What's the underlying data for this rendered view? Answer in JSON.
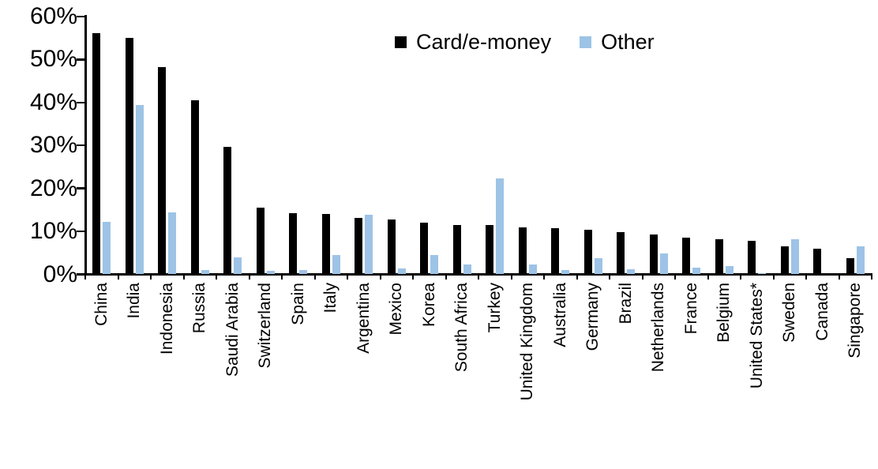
{
  "chart_data": {
    "type": "bar",
    "title": "",
    "xlabel": "",
    "ylabel": "",
    "ylim": [
      0,
      60
    ],
    "ytick_values": [
      0,
      10,
      20,
      30,
      40,
      50,
      60
    ],
    "ytick_labels": [
      "0%",
      "10%",
      "20%",
      "30%",
      "40%",
      "50%",
      "60%"
    ],
    "grid": false,
    "legend_position": "top-center",
    "categories": [
      "China",
      "India",
      "Indonesia",
      "Russia",
      "Saudi Arabia",
      "Switzerland",
      "Spain",
      "Italy",
      "Argentina",
      "Mexico",
      "Korea",
      "South Africa",
      "Turkey",
      "United Kingdom",
      "Australia",
      "Germany",
      "Brazil",
      "Netherlands",
      "France",
      "Belgium",
      "United States*",
      "Sweden",
      "Canada",
      "Singapore"
    ],
    "series": [
      {
        "name": "Card/e-money",
        "color": "#000000",
        "values": [
          56.2,
          55.0,
          48.2,
          40.5,
          29.7,
          15.5,
          14.2,
          14.0,
          13.2,
          12.8,
          12.1,
          11.5,
          11.4,
          11.0,
          10.7,
          10.4,
          9.9,
          9.2,
          8.6,
          8.1,
          7.8,
          6.5,
          5.9,
          3.8
        ]
      },
      {
        "name": "Other",
        "color": "#9DC3E6",
        "values": [
          12.3,
          39.5,
          14.4,
          1.0,
          3.9,
          0.8,
          1.0,
          4.5,
          13.8,
          1.3,
          4.5,
          2.3,
          22.4,
          2.3,
          1.0,
          3.8,
          1.2,
          4.8,
          1.6,
          2.0,
          0.3,
          8.1,
          0.0,
          6.6
        ]
      }
    ]
  }
}
